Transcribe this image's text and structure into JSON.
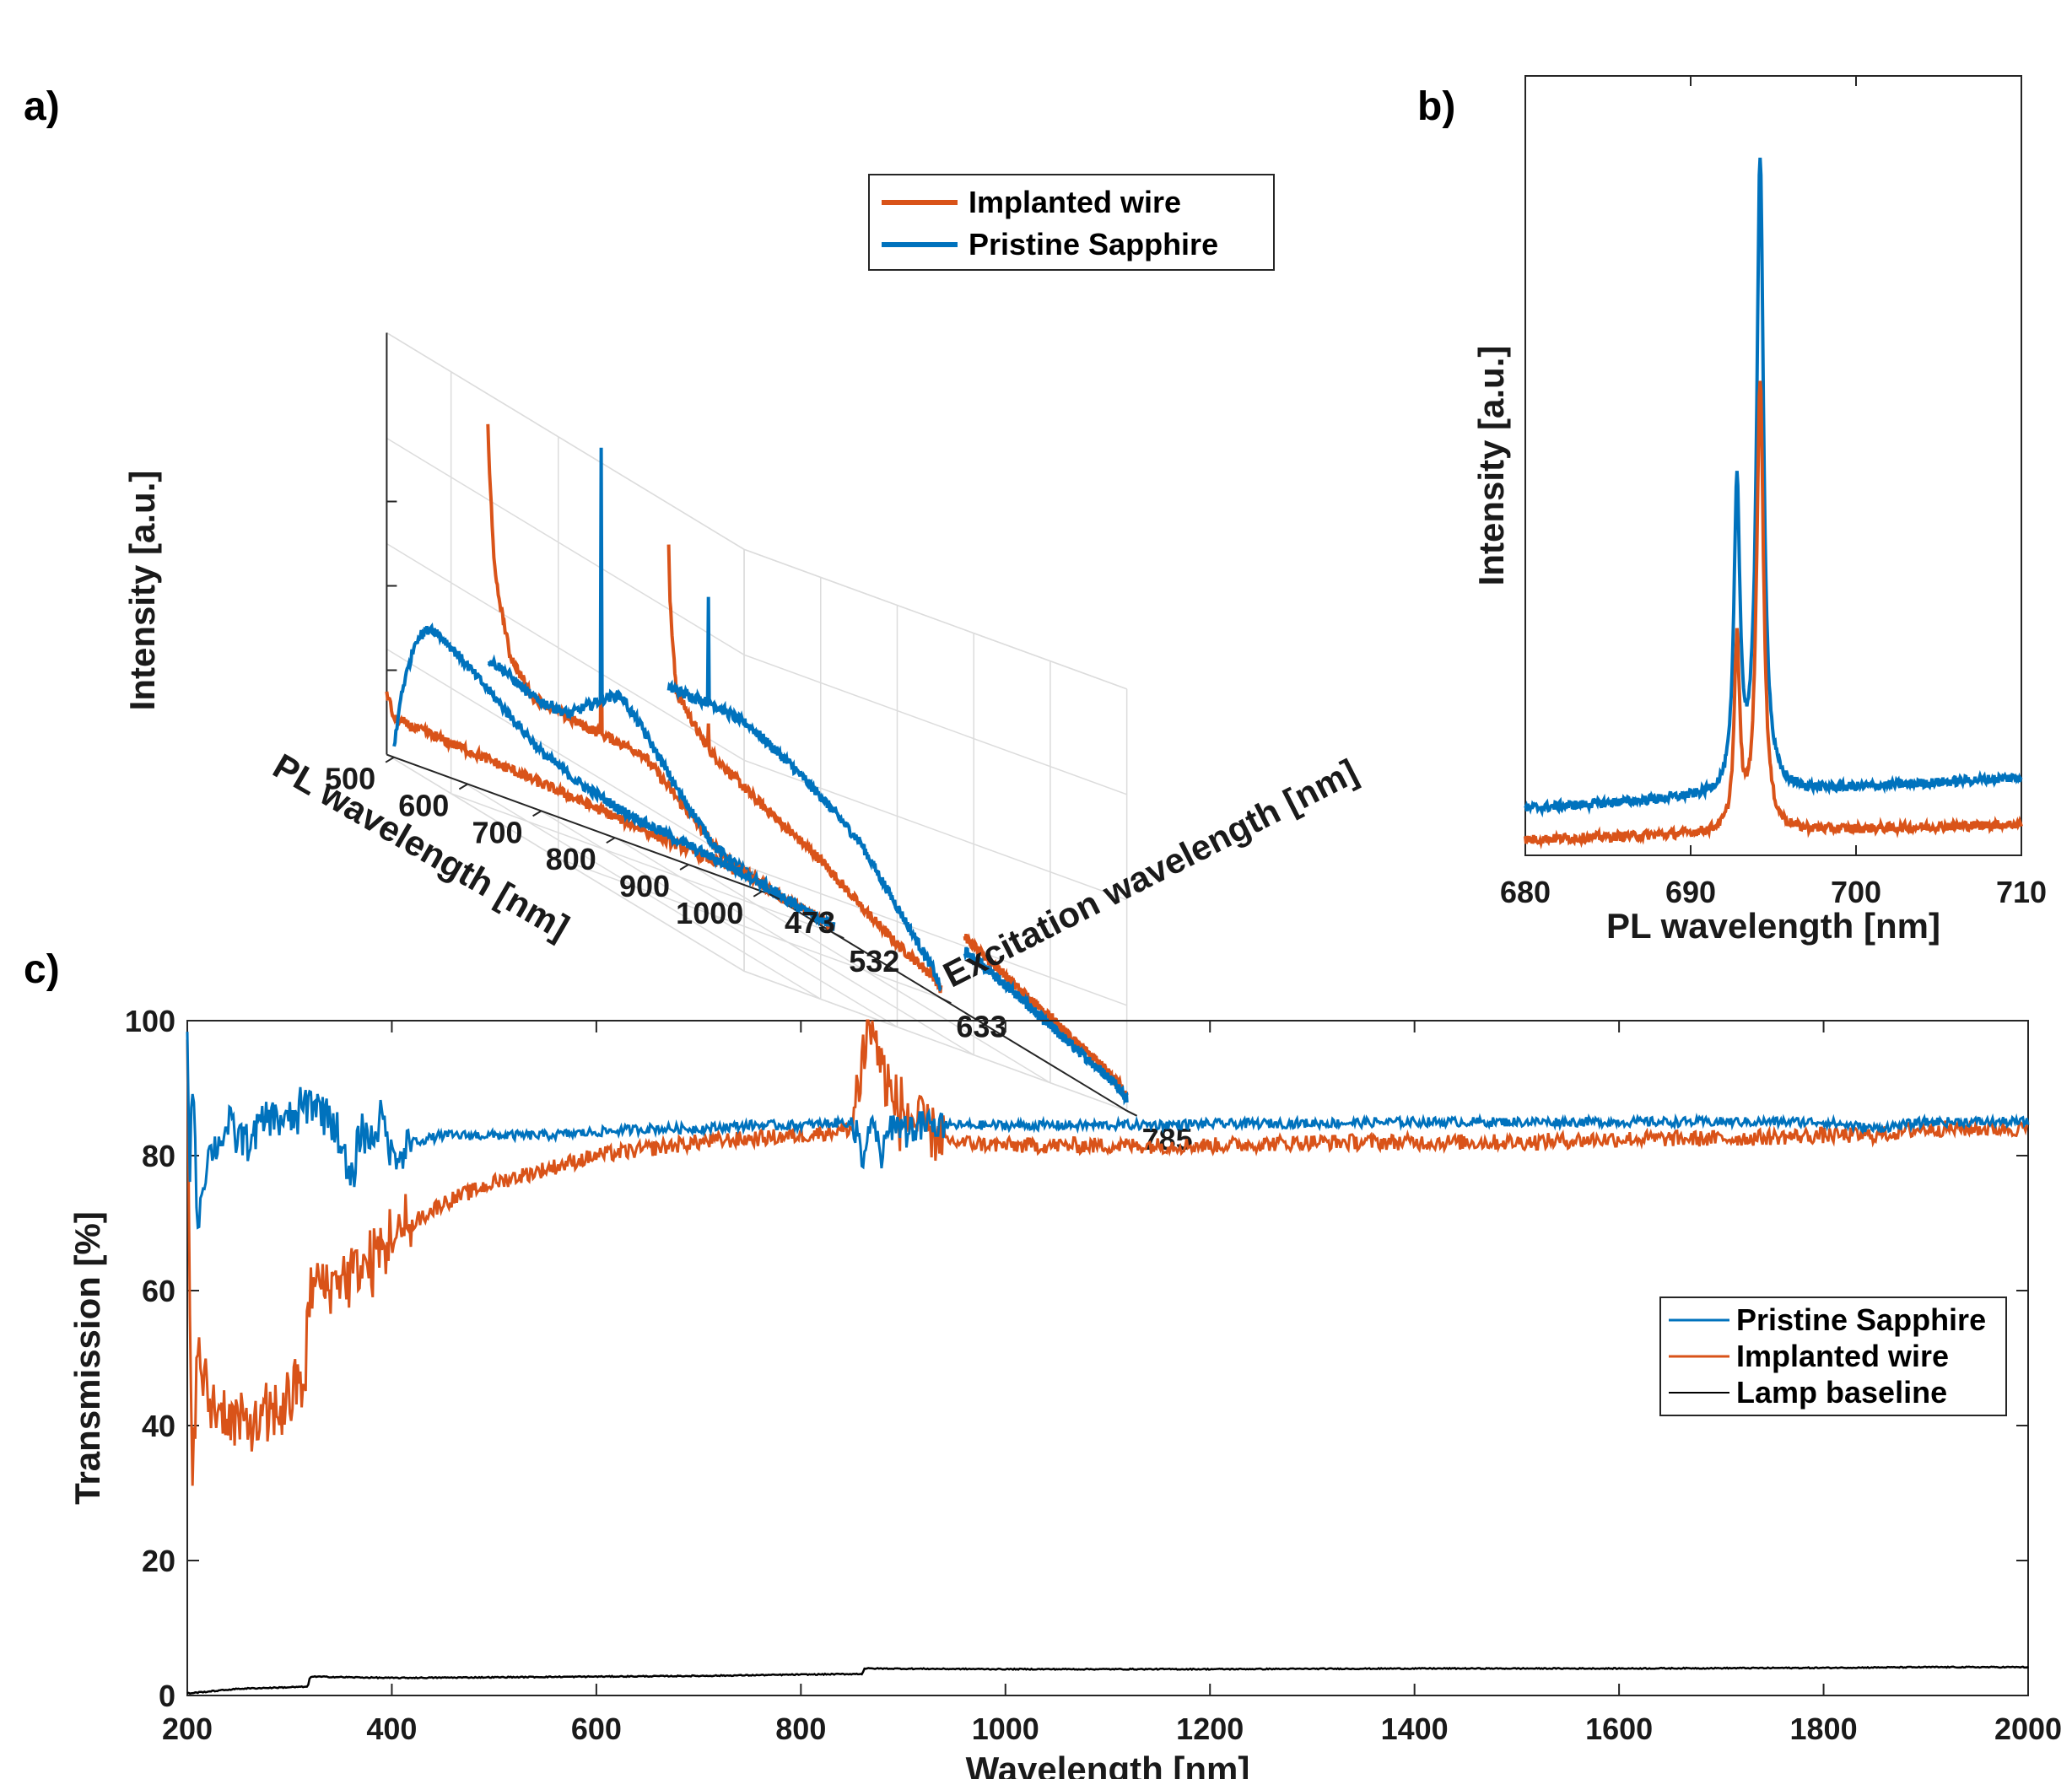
{
  "colors": {
    "blue": "#0072BD",
    "orange": "#D95319",
    "black": "#000000"
  },
  "panels": {
    "a": "a)",
    "b": "b)",
    "c": "c)"
  },
  "chart_data": [
    {
      "id": "a",
      "type": "line",
      "projection": "3d-waterfall",
      "xlabel": "PL wavelength   [nm]",
      "ylabel": "Excitation wavelength   [nm]",
      "zlabel": "Intensity   [a.u.]",
      "x_ticks": [
        "500",
        "600",
        "700",
        "800",
        "900",
        "1000"
      ],
      "x_tick_values": [
        500,
        600,
        700,
        800,
        900,
        1000
      ],
      "y_ticks": [
        "473",
        "532",
        "633",
        "785"
      ],
      "legend": [
        "Implanted wire",
        "Pristine Sapphire"
      ],
      "slices": [
        {
          "excitation": 473,
          "implanted": {
            "x": [
              490,
              500,
              550,
              600,
              650,
              700,
              750,
              800,
              850,
              900,
              950,
              1000,
              1010
            ],
            "y": [
              0.15,
              0.09,
              0.085,
              0.08,
              0.073,
              0.065,
              0.058,
              0.05,
              0.042,
              0.035,
              0.028,
              0.02,
              0.015
            ]
          },
          "pristine": {
            "x": [
              500,
              510,
              530,
              550,
              570,
              600,
              650,
              700,
              750,
              800,
              850,
              900,
              950,
              1000,
              1010
            ],
            "y": [
              0.02,
              0.16,
              0.3,
              0.34,
              0.32,
              0.28,
              0.21,
              0.14,
              0.1,
              0.075,
              0.058,
              0.045,
              0.033,
              0.02,
              0.015
            ]
          }
        },
        {
          "excitation": 532,
          "implanted": {
            "x": [
              540,
              542,
              550,
              570,
              600,
              650,
              700,
              750,
              800,
              850,
              900,
              950,
              1000,
              1010
            ],
            "y": [
              0.9,
              0.8,
              0.55,
              0.38,
              0.3,
              0.28,
              0.27,
              0.26,
              0.18,
              0.1,
              0.06,
              0.035,
              0.02,
              0.015
            ]
          },
          "pristine": {
            "x": [
              540,
              560,
              600,
              650,
              700,
              720,
              750,
              800,
              850,
              900,
              950,
              1000,
              1010
            ],
            "y": [
              0.35,
              0.34,
              0.3,
              0.29,
              0.36,
              0.38,
              0.32,
              0.2,
              0.1,
              0.06,
              0.035,
              0.02,
              0.015
            ]
          },
          "spikes": [
            {
              "x": 694,
              "pristine": 0.95,
              "implanted": 0.55
            }
          ]
        },
        {
          "excitation": 633,
          "implanted": {
            "x": [
              640,
              642,
              650,
              680,
              700,
              750,
              800,
              850,
              900,
              950,
              1000,
              1010
            ],
            "y": [
              0.85,
              0.7,
              0.5,
              0.42,
              0.38,
              0.32,
              0.27,
              0.22,
              0.15,
              0.09,
              0.045,
              0.02
            ]
          },
          "pristine": {
            "x": [
              640,
              650,
              680,
              700,
              750,
              800,
              850,
              900,
              950,
              1000,
              1010
            ],
            "y": [
              0.5,
              0.5,
              0.5,
              0.5,
              0.48,
              0.43,
              0.37,
              0.3,
              0.18,
              0.06,
              0.02
            ]
          },
          "spikes": [
            {
              "x": 694,
              "pristine": 0.75,
              "implanted": 0.45
            }
          ]
        },
        {
          "excitation": 785,
          "implanted": {
            "x": [
              790,
              800,
              850,
              900,
              950,
              1000,
              1010
            ],
            "y": [
              0.27,
              0.26,
              0.21,
              0.16,
              0.11,
              0.06,
              0.03
            ]
          },
          "pristine": {
            "x": [
              790,
              800,
              850,
              900,
              950,
              1000,
              1010
            ],
            "y": [
              0.24,
              0.23,
              0.19,
              0.14,
              0.095,
              0.05,
              0.025
            ]
          }
        }
      ]
    },
    {
      "id": "b",
      "type": "line",
      "xlabel": "PL wavelength   [nm]",
      "ylabel": "Intensity   [a.u.]",
      "x_ticks": [
        "680",
        "690",
        "700",
        "710"
      ],
      "xlim": [
        680,
        710
      ],
      "ylim": [
        0,
        1
      ],
      "series": [
        {
          "name": "Pristine Sapphire",
          "color": "blue",
          "peaks": [
            {
              "x": 692.8,
              "h": 0.39,
              "w": 0.22
            },
            {
              "x": 694.2,
              "h": 0.81,
              "w": 0.25
            }
          ],
          "baseline_start": 0.06,
          "baseline_end": 0.1
        },
        {
          "name": "Implanted wire",
          "color": "orange",
          "peaks": [
            {
              "x": 692.8,
              "h": 0.24,
              "w": 0.2
            },
            {
              "x": 694.2,
              "h": 0.58,
              "w": 0.25
            }
          ],
          "baseline_start": 0.02,
          "baseline_end": 0.04
        }
      ]
    },
    {
      "id": "c",
      "type": "line",
      "xlabel": "Wavelength   [nm]",
      "ylabel": "Transmission   [%]",
      "xlim": [
        200,
        2000
      ],
      "ylim": [
        0,
        100
      ],
      "x_ticks": [
        "200",
        "400",
        "600",
        "800",
        "1000",
        "1200",
        "1400",
        "1600",
        "1800",
        "2000"
      ],
      "y_ticks": [
        "0",
        "20",
        "40",
        "60",
        "80",
        "100"
      ],
      "legend": [
        "Pristine Sapphire",
        "Implanted wire",
        "Lamp baseline"
      ],
      "series": [
        {
          "name": "Pristine Sapphire",
          "color": "blue",
          "x": [
            200,
            202,
            205,
            210,
            220,
            240,
            260,
            280,
            300,
            320,
            340,
            350,
            360,
            370,
            380,
            390,
            400,
            420,
            450,
            500,
            550,
            600,
            650,
            700,
            750,
            800,
            850,
            860,
            870,
            880,
            890,
            900,
            950,
            1000,
            1100,
            1200,
            1300,
            1400,
            1500,
            1600,
            1700,
            1800,
            1850,
            1900,
            1950,
            2000
          ],
          "y": [
            100,
            75,
            92,
            70,
            80,
            84,
            82,
            86,
            85,
            88,
            86,
            82,
            75,
            84,
            82,
            86,
            80,
            82,
            83,
            83,
            83,
            83.5,
            84,
            84,
            84.5,
            84.5,
            85,
            80,
            84,
            80,
            85,
            84,
            84.5,
            84.5,
            84.5,
            84.7,
            84.8,
            85,
            85,
            85,
            85,
            85,
            84,
            85,
            85,
            85
          ]
        },
        {
          "name": "Implanted wire",
          "color": "orange",
          "x": [
            200,
            202,
            205,
            210,
            220,
            240,
            260,
            280,
            300,
            315,
            320,
            330,
            350,
            380,
            400,
            450,
            500,
            550,
            600,
            650,
            700,
            750,
            800,
            850,
            860,
            870,
            880,
            890,
            900,
            920,
            950,
            1000,
            1100,
            1200,
            1300,
            1400,
            1500,
            1600,
            1700,
            1800,
            1850,
            1900,
            1950,
            2000
          ],
          "y": [
            95,
            60,
            35,
            50,
            44,
            41,
            40,
            41,
            44,
            47,
            60,
            61,
            62,
            64,
            68,
            73,
            76,
            78,
            80,
            81,
            82,
            82.5,
            83,
            84,
            95,
            100,
            92,
            88,
            86,
            84,
            82,
            81.5,
            81.5,
            81.5,
            82,
            82,
            82,
            82.5,
            82.5,
            83,
            83,
            84,
            84,
            84
          ]
        },
        {
          "name": "Lamp baseline",
          "color": "black",
          "x": [
            200,
            250,
            318,
            320,
            400,
            500,
            600,
            700,
            800,
            860,
            862,
            1000,
            1200,
            1400,
            1600,
            1800,
            1900,
            2000
          ],
          "y": [
            0.3,
            1,
            1.3,
            2.8,
            2.6,
            2.7,
            2.8,
            2.9,
            3.1,
            3.2,
            4,
            3.9,
            3.9,
            4,
            4,
            4.1,
            4.2,
            4.2
          ]
        }
      ]
    }
  ]
}
